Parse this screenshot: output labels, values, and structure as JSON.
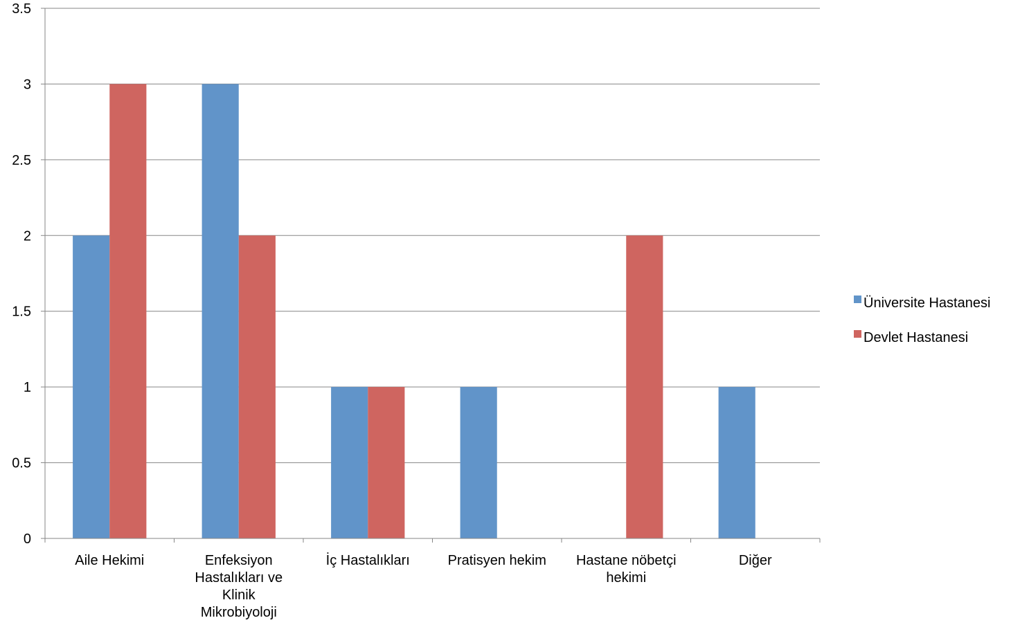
{
  "chart_data": {
    "type": "bar",
    "categories": [
      [
        "Aile Hekimi"
      ],
      [
        "Enfeksiyon",
        "Hastalıkları ve",
        "Klinik",
        "Mikrobiyoloji"
      ],
      [
        "İç Hastalıkları"
      ],
      [
        "Pratisyen hekim"
      ],
      [
        "Hastane nöbetçi",
        "hekimi"
      ],
      [
        "Diğer"
      ]
    ],
    "series": [
      {
        "name": "Üniversite Hastanesi",
        "color": "#6194C9",
        "values": [
          2,
          3,
          1,
          1,
          0,
          1
        ]
      },
      {
        "name": "Devlet Hastanesi",
        "color": "#CF6560",
        "values": [
          3,
          2,
          1,
          0,
          2,
          0
        ]
      }
    ],
    "title": "",
    "xlabel": "",
    "ylabel": "",
    "ylim": [
      0,
      3.5
    ],
    "yticks": [
      0,
      0.5,
      1,
      1.5,
      2,
      2.5,
      3,
      3.5
    ],
    "ytick_labels": [
      "0",
      "0.5",
      "1",
      "1.5",
      "2",
      "2.5",
      "3",
      "3.5"
    ],
    "grid": true,
    "legend_position": "right"
  }
}
